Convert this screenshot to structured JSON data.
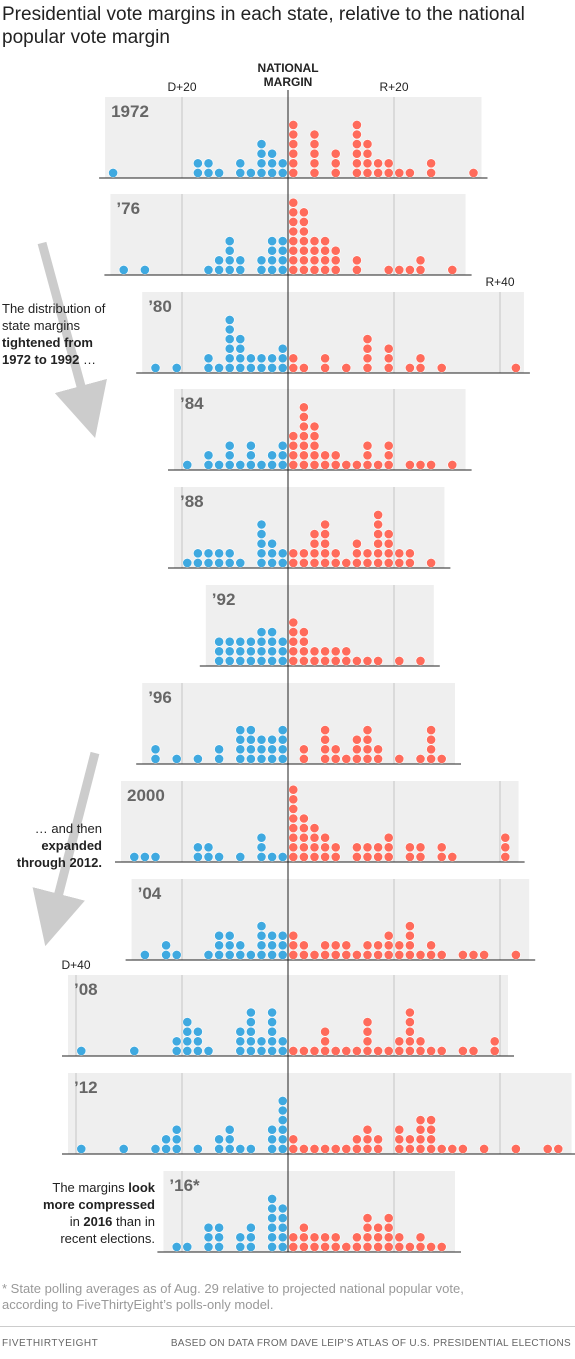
{
  "title": "Presidential vote margins in each state, relative to the national popular vote margin",
  "notes": {
    "n1": {
      "a": "The distribution of",
      "b": "state margins",
      "c": "tightened from",
      "d": "1972 to 1992",
      "e": " …"
    },
    "n2": {
      "a": "… and then",
      "b": "expanded",
      "c": "through 2012."
    },
    "n3": {
      "a": "The margins ",
      "b": "look",
      "c": "more compressed",
      "d": "in ",
      "e": "2016",
      "f": " than in",
      "g": "recent elections."
    }
  },
  "footnote": "* State polling averages as of Aug. 29 relative to projected national popular vote, according to FiveThirtyEight’s polls-only model.",
  "brand": "FIVETHIRTYEIGHT",
  "source": "BASED ON DATA FROM DAVE LEIP’S ATLAS OF U.S. PRESIDENTIAL ELECTIONS",
  "colors": {
    "dem": "#3fa9e0",
    "rep": "#ff6b5b",
    "panel": "#efefef",
    "grid": "#bbbbbb",
    "arrow": "#cccccc"
  },
  "chart_data": {
    "type": "dot-histogram",
    "center_label": [
      "NATIONAL",
      "MARGIN"
    ],
    "axis_labels": [
      {
        "text": "D+20",
        "value": -20,
        "row": 0
      },
      {
        "text": "R+20",
        "value": 20,
        "row": 0
      },
      {
        "text": "R+40",
        "value": 40,
        "row": 2
      },
      {
        "text": "D+40",
        "value": -40,
        "row": 9
      }
    ],
    "unit": "percentage points relative to national margin (negative = more Democratic)",
    "bin_width": 2,
    "years": [
      {
        "label": "1972",
        "range": [
          -33,
          35
        ],
        "dem": [
          [
            -33,
            1
          ],
          [
            -17,
            2
          ],
          [
            -15,
            2
          ],
          [
            -13,
            1
          ],
          [
            -9,
            2
          ],
          [
            -7,
            1
          ],
          [
            -5,
            4
          ],
          [
            -3,
            3
          ],
          [
            -1,
            2
          ]
        ],
        "rep": [
          [
            1,
            6
          ],
          [
            5,
            5
          ],
          [
            9,
            3
          ],
          [
            13,
            6
          ],
          [
            15,
            4
          ],
          [
            17,
            2
          ],
          [
            19,
            2
          ],
          [
            21,
            1
          ],
          [
            23,
            1
          ],
          [
            27,
            2
          ],
          [
            35,
            1
          ]
        ]
      },
      {
        "label": "’76",
        "range": [
          -32,
          32
        ],
        "dem": [
          [
            -31,
            1
          ],
          [
            -27,
            1
          ],
          [
            -15,
            1
          ],
          [
            -13,
            2
          ],
          [
            -11,
            4
          ],
          [
            -9,
            2
          ],
          [
            -5,
            2
          ],
          [
            -3,
            4
          ],
          [
            -1,
            4
          ]
        ],
        "rep": [
          [
            1,
            8
          ],
          [
            3,
            7
          ],
          [
            5,
            4
          ],
          [
            7,
            4
          ],
          [
            9,
            3
          ],
          [
            13,
            2
          ],
          [
            19,
            1
          ],
          [
            21,
            1
          ],
          [
            23,
            1
          ],
          [
            25,
            2
          ],
          [
            31,
            1
          ]
        ]
      },
      {
        "label": "’80",
        "range": [
          -26,
          43
        ],
        "dem": [
          [
            -25,
            1
          ],
          [
            -21,
            1
          ],
          [
            -15,
            2
          ],
          [
            -13,
            1
          ],
          [
            -11,
            6
          ],
          [
            -9,
            4
          ],
          [
            -7,
            2
          ],
          [
            -5,
            2
          ],
          [
            -3,
            2
          ],
          [
            -1,
            3
          ]
        ],
        "rep": [
          [
            1,
            2
          ],
          [
            3,
            1
          ],
          [
            7,
            2
          ],
          [
            11,
            1
          ],
          [
            15,
            4
          ],
          [
            19,
            3
          ],
          [
            23,
            1
          ],
          [
            25,
            2
          ],
          [
            29,
            1
          ],
          [
            43,
            1
          ]
        ]
      },
      {
        "label": "’84",
        "range": [
          -20,
          32
        ],
        "dem": [
          [
            -19,
            1
          ],
          [
            -15,
            2
          ],
          [
            -13,
            1
          ],
          [
            -11,
            3
          ],
          [
            -9,
            1
          ],
          [
            -7,
            3
          ],
          [
            -5,
            1
          ],
          [
            -3,
            2
          ],
          [
            -1,
            3
          ]
        ],
        "rep": [
          [
            1,
            4
          ],
          [
            3,
            7
          ],
          [
            5,
            5
          ],
          [
            7,
            2
          ],
          [
            9,
            2
          ],
          [
            11,
            1
          ],
          [
            13,
            1
          ],
          [
            15,
            3
          ],
          [
            17,
            1
          ],
          [
            19,
            3
          ],
          [
            23,
            1
          ],
          [
            25,
            1
          ],
          [
            27,
            1
          ],
          [
            31,
            1
          ]
        ]
      },
      {
        "label": "’88",
        "range": [
          -20,
          28
        ],
        "dem": [
          [
            -19,
            1
          ],
          [
            -17,
            2
          ],
          [
            -15,
            2
          ],
          [
            -13,
            2
          ],
          [
            -11,
            2
          ],
          [
            -9,
            1
          ],
          [
            -5,
            5
          ],
          [
            -3,
            3
          ],
          [
            -1,
            2
          ]
        ],
        "rep": [
          [
            1,
            2
          ],
          [
            3,
            2
          ],
          [
            5,
            4
          ],
          [
            7,
            5
          ],
          [
            9,
            2
          ],
          [
            11,
            1
          ],
          [
            13,
            3
          ],
          [
            15,
            2
          ],
          [
            17,
            6
          ],
          [
            19,
            4
          ],
          [
            21,
            2
          ],
          [
            23,
            2
          ],
          [
            27,
            1
          ]
        ]
      },
      {
        "label": "’92",
        "range": [
          -14,
          26
        ],
        "dem": [
          [
            -13,
            3
          ],
          [
            -11,
            3
          ],
          [
            -9,
            3
          ],
          [
            -7,
            3
          ],
          [
            -5,
            4
          ],
          [
            -3,
            4
          ],
          [
            -1,
            3
          ]
        ],
        "rep": [
          [
            1,
            5
          ],
          [
            3,
            4
          ],
          [
            5,
            2
          ],
          [
            7,
            2
          ],
          [
            9,
            2
          ],
          [
            11,
            2
          ],
          [
            13,
            1
          ],
          [
            15,
            1
          ],
          [
            17,
            1
          ],
          [
            21,
            1
          ],
          [
            25,
            1
          ]
        ]
      },
      {
        "label": "’96",
        "range": [
          -26,
          30
        ],
        "dem": [
          [
            -25,
            2
          ],
          [
            -21,
            1
          ],
          [
            -17,
            1
          ],
          [
            -13,
            2
          ],
          [
            -9,
            4
          ],
          [
            -7,
            4
          ],
          [
            -5,
            3
          ],
          [
            -3,
            3
          ],
          [
            -1,
            4
          ]
        ],
        "rep": [
          [
            3,
            2
          ],
          [
            7,
            4
          ],
          [
            9,
            2
          ],
          [
            11,
            1
          ],
          [
            13,
            3
          ],
          [
            15,
            4
          ],
          [
            17,
            2
          ],
          [
            21,
            1
          ],
          [
            25,
            1
          ],
          [
            27,
            4
          ],
          [
            29,
            1
          ]
        ]
      },
      {
        "label": "2000",
        "range": [
          -30,
          42
        ],
        "dem": [
          [
            -29,
            1
          ],
          [
            -27,
            1
          ],
          [
            -25,
            1
          ],
          [
            -17,
            2
          ],
          [
            -15,
            2
          ],
          [
            -13,
            1
          ],
          [
            -9,
            1
          ],
          [
            -5,
            3
          ],
          [
            -3,
            1
          ],
          [
            -1,
            1
          ]
        ],
        "rep": [
          [
            1,
            8
          ],
          [
            3,
            5
          ],
          [
            5,
            4
          ],
          [
            7,
            3
          ],
          [
            9,
            2
          ],
          [
            13,
            2
          ],
          [
            15,
            2
          ],
          [
            17,
            2
          ],
          [
            19,
            3
          ],
          [
            23,
            2
          ],
          [
            25,
            2
          ],
          [
            29,
            2
          ],
          [
            31,
            1
          ],
          [
            41,
            3
          ]
        ]
      },
      {
        "label": "’04",
        "range": [
          -28,
          44
        ],
        "dem": [
          [
            -27,
            1
          ],
          [
            -23,
            2
          ],
          [
            -21,
            1
          ],
          [
            -15,
            1
          ],
          [
            -13,
            3
          ],
          [
            -11,
            3
          ],
          [
            -9,
            2
          ],
          [
            -7,
            1
          ],
          [
            -5,
            4
          ],
          [
            -3,
            3
          ],
          [
            -1,
            3
          ]
        ],
        "rep": [
          [
            1,
            3
          ],
          [
            3,
            2
          ],
          [
            5,
            1
          ],
          [
            7,
            2
          ],
          [
            9,
            2
          ],
          [
            11,
            2
          ],
          [
            13,
            1
          ],
          [
            15,
            2
          ],
          [
            17,
            2
          ],
          [
            19,
            3
          ],
          [
            21,
            2
          ],
          [
            23,
            4
          ],
          [
            25,
            1
          ],
          [
            27,
            2
          ],
          [
            29,
            1
          ],
          [
            33,
            1
          ],
          [
            35,
            1
          ],
          [
            37,
            1
          ],
          [
            43,
            1
          ]
        ]
      },
      {
        "label": "’08",
        "range": [
          -40,
          40
        ],
        "dem": [
          [
            -39,
            1
          ],
          [
            -29,
            1
          ],
          [
            -21,
            2
          ],
          [
            -19,
            4
          ],
          [
            -17,
            3
          ],
          [
            -15,
            1
          ],
          [
            -9,
            3
          ],
          [
            -7,
            5
          ],
          [
            -5,
            2
          ],
          [
            -3,
            5
          ],
          [
            -1,
            2
          ]
        ],
        "rep": [
          [
            1,
            1
          ],
          [
            3,
            1
          ],
          [
            5,
            1
          ],
          [
            7,
            3
          ],
          [
            9,
            1
          ],
          [
            11,
            1
          ],
          [
            13,
            1
          ],
          [
            15,
            4
          ],
          [
            17,
            1
          ],
          [
            19,
            1
          ],
          [
            21,
            2
          ],
          [
            23,
            5
          ],
          [
            25,
            2
          ],
          [
            27,
            1
          ],
          [
            29,
            1
          ],
          [
            33,
            1
          ],
          [
            35,
            1
          ],
          [
            39,
            2
          ]
        ]
      },
      {
        "label": "’12",
        "range": [
          -40,
          52
        ],
        "dem": [
          [
            -39,
            1
          ],
          [
            -31,
            1
          ],
          [
            -25,
            1
          ],
          [
            -23,
            2
          ],
          [
            -21,
            3
          ],
          [
            -17,
            1
          ],
          [
            -13,
            2
          ],
          [
            -11,
            3
          ],
          [
            -9,
            1
          ],
          [
            -7,
            1
          ],
          [
            -3,
            3
          ],
          [
            -1,
            6
          ]
        ],
        "rep": [
          [
            1,
            2
          ],
          [
            3,
            1
          ],
          [
            5,
            1
          ],
          [
            7,
            1
          ],
          [
            9,
            1
          ],
          [
            11,
            1
          ],
          [
            13,
            2
          ],
          [
            15,
            3
          ],
          [
            17,
            2
          ],
          [
            21,
            3
          ],
          [
            23,
            2
          ],
          [
            25,
            4
          ],
          [
            27,
            4
          ],
          [
            29,
            1
          ],
          [
            31,
            1
          ],
          [
            33,
            1
          ],
          [
            37,
            1
          ],
          [
            43,
            1
          ],
          [
            49,
            1
          ],
          [
            51,
            1
          ]
        ]
      },
      {
        "label": "’16*",
        "range": [
          -22,
          30
        ],
        "dem": [
          [
            -21,
            1
          ],
          [
            -19,
            1
          ],
          [
            -15,
            3
          ],
          [
            -13,
            3
          ],
          [
            -9,
            2
          ],
          [
            -7,
            3
          ],
          [
            -3,
            6
          ],
          [
            -1,
            5
          ]
        ],
        "rep": [
          [
            1,
            2
          ],
          [
            3,
            3
          ],
          [
            5,
            2
          ],
          [
            7,
            2
          ],
          [
            9,
            2
          ],
          [
            11,
            1
          ],
          [
            13,
            2
          ],
          [
            15,
            4
          ],
          [
            17,
            3
          ],
          [
            19,
            4
          ],
          [
            21,
            2
          ],
          [
            23,
            1
          ],
          [
            25,
            2
          ],
          [
            27,
            1
          ],
          [
            29,
            1
          ]
        ]
      }
    ]
  }
}
